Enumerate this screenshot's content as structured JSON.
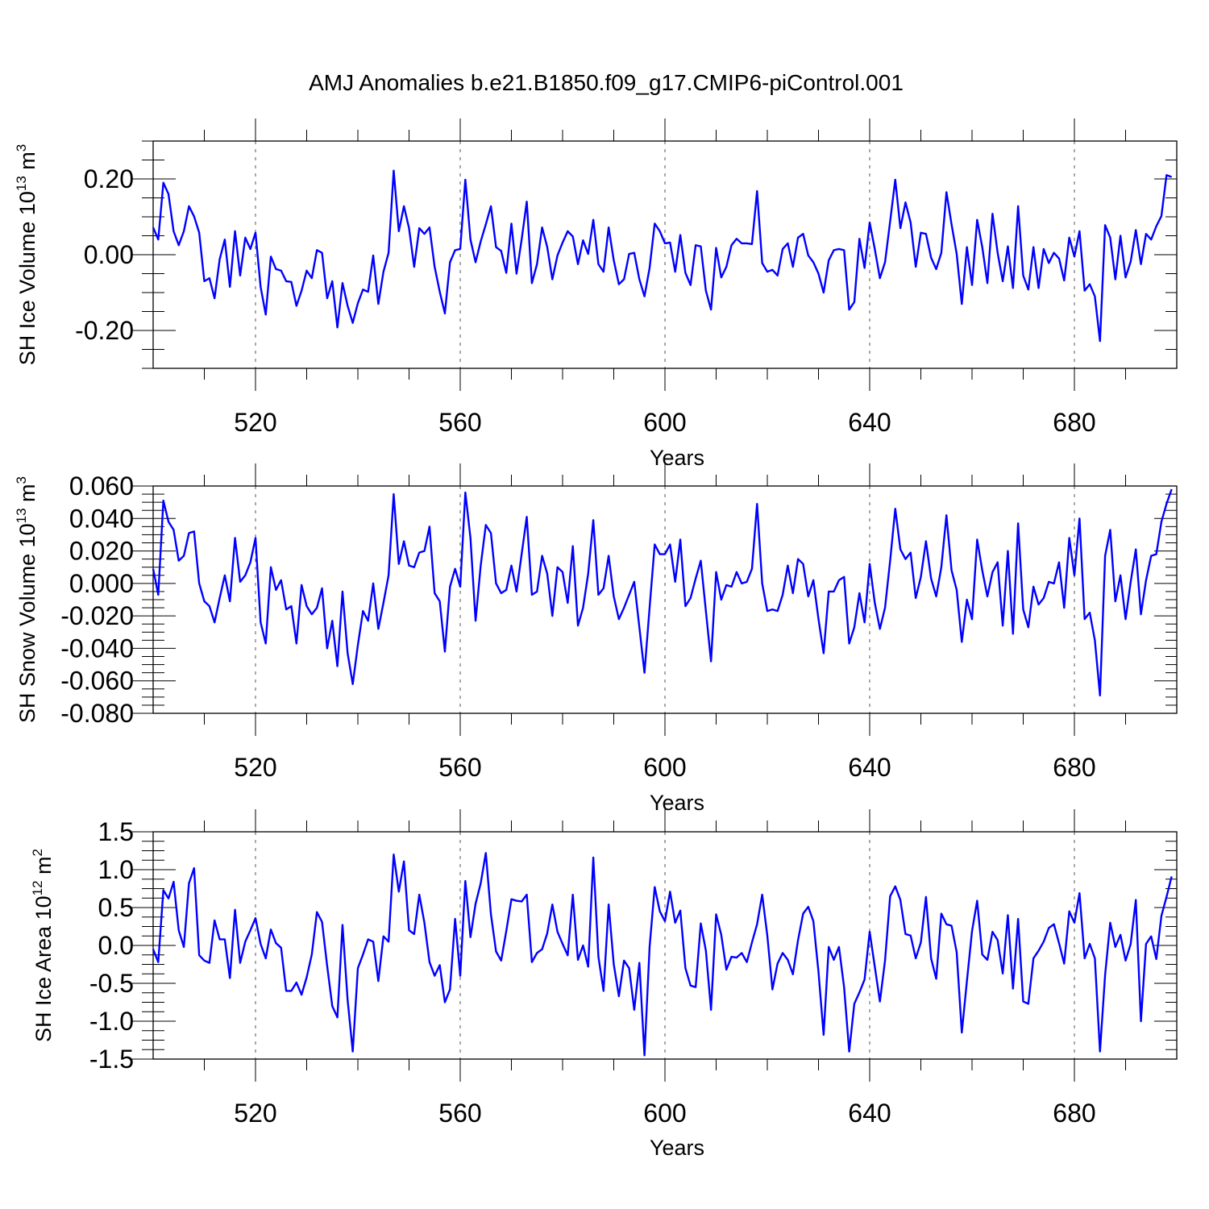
{
  "figure": {
    "title": "AMJ Anomalies b.e21.B1850.f09_g17.CMIP6-piControl.001"
  },
  "chart_data": [
    {
      "type": "line",
      "title": "",
      "xlabel": "Years",
      "ylabel": "SH Ice Volume 10",
      "ylabel_exp": "13",
      "ylabel_unit": " m",
      "ylabel_unit_exp": "3",
      "xlim": [
        500,
        700
      ],
      "ylim": [
        -0.3,
        0.3
      ],
      "xticks": [
        520,
        560,
        600,
        640,
        680
      ],
      "xtick_labels": [
        "520",
        "560",
        "600",
        "640",
        "680"
      ],
      "yticks": [
        -0.2,
        0.0,
        0.2
      ],
      "ytick_labels": [
        "-0.20",
        "0.00",
        "0.20"
      ],
      "grid": "vertical dashed at major x ticks",
      "color": "#0000ff",
      "x_start": 500,
      "values": [
        0.072,
        0.04,
        0.19,
        0.16,
        0.062,
        0.025,
        0.062,
        0.128,
        0.101,
        0.058,
        -0.07,
        -0.062,
        -0.115,
        -0.012,
        0.04,
        -0.085,
        0.062,
        -0.055,
        0.045,
        0.015,
        0.058,
        -0.085,
        -0.158,
        -0.005,
        -0.038,
        -0.042,
        -0.07,
        -0.072,
        -0.135,
        -0.095,
        -0.042,
        -0.062,
        0.012,
        0.005,
        -0.115,
        -0.07,
        -0.192,
        -0.075,
        -0.135,
        -0.18,
        -0.128,
        -0.092,
        -0.098,
        -0.002,
        -0.13,
        -0.045,
        0.005,
        0.222,
        0.062,
        0.128,
        0.07,
        -0.032,
        0.07,
        0.055,
        0.072,
        -0.032,
        -0.098,
        -0.155,
        -0.02,
        0.012,
        0.015,
        0.198,
        0.04,
        -0.02,
        0.035,
        0.08,
        0.128,
        0.02,
        0.01,
        -0.048,
        0.082,
        -0.05,
        0.04,
        0.14,
        -0.075,
        -0.025,
        0.072,
        0.02,
        -0.065,
        -0.002,
        0.032,
        0.062,
        0.048,
        -0.025,
        0.038,
        0.002,
        0.092,
        -0.025,
        -0.045,
        0.072,
        -0.015,
        -0.078,
        -0.065,
        0.002,
        0.005,
        -0.065,
        -0.11,
        -0.035,
        0.082,
        0.062,
        0.03,
        0.032,
        -0.045,
        0.052,
        -0.048,
        -0.08,
        0.025,
        0.022,
        -0.095,
        -0.145,
        0.018,
        -0.06,
        -0.032,
        0.025,
        0.042,
        0.03,
        0.03,
        0.028,
        0.168,
        -0.022,
        -0.045,
        -0.04,
        -0.055,
        0.015,
        0.03,
        -0.032,
        0.045,
        0.055,
        -0.002,
        -0.02,
        -0.05,
        -0.1,
        -0.015,
        0.012,
        0.015,
        0.012,
        -0.145,
        -0.125,
        0.042,
        -0.035,
        0.085,
        0.015,
        -0.062,
        -0.02,
        0.088,
        0.198,
        0.07,
        0.138,
        0.085,
        -0.032,
        0.058,
        0.055,
        -0.008,
        -0.038,
        0.005,
        0.165,
        0.08,
        0.002,
        -0.13,
        0.02,
        -0.08,
        0.092,
        0.02,
        -0.075,
        0.108,
        0.005,
        -0.07,
        0.022,
        -0.088,
        0.128,
        -0.055,
        -0.092,
        0.02,
        -0.088,
        0.015,
        -0.022,
        0.005,
        -0.01,
        -0.068,
        0.045,
        -0.005,
        0.062,
        -0.095,
        -0.078,
        -0.11,
        -0.228,
        0.078,
        0.045,
        -0.065,
        0.05,
        -0.06,
        -0.018,
        0.065,
        -0.025,
        0.055,
        0.04,
        0.075,
        0.102,
        0.21,
        0.205
      ]
    },
    {
      "type": "line",
      "title": "",
      "xlabel": "Years",
      "ylabel": "SH Snow Volume 10",
      "ylabel_exp": "13",
      "ylabel_unit": " m",
      "ylabel_unit_exp": "3",
      "xlim": [
        500,
        700
      ],
      "ylim": [
        -0.08,
        0.06
      ],
      "xticks": [
        520,
        560,
        600,
        640,
        680
      ],
      "xtick_labels": [
        "520",
        "560",
        "600",
        "640",
        "680"
      ],
      "yticks": [
        -0.08,
        -0.06,
        -0.04,
        -0.02,
        0.0,
        0.02,
        0.04,
        0.06
      ],
      "ytick_labels": [
        "-0.080",
        "-0.060",
        "-0.040",
        "-0.020",
        "0.000",
        "0.020",
        "0.040",
        "0.060"
      ],
      "grid": "vertical dashed at major x ticks",
      "color": "#0000ff",
      "x_start": 500,
      "values": [
        0.009,
        -0.007,
        0.051,
        0.038,
        0.033,
        0.014,
        0.017,
        0.031,
        0.032,
        0.0,
        -0.011,
        -0.014,
        -0.024,
        -0.009,
        0.005,
        -0.011,
        0.028,
        0.001,
        0.005,
        0.013,
        0.028,
        -0.024,
        -0.037,
        0.01,
        -0.004,
        0.002,
        -0.016,
        -0.014,
        -0.037,
        -0.001,
        -0.014,
        -0.019,
        -0.015,
        -0.003,
        -0.04,
        -0.023,
        -0.051,
        -0.005,
        -0.043,
        -0.062,
        -0.038,
        -0.017,
        -0.023,
        0.0,
        -0.028,
        -0.012,
        0.005,
        0.055,
        0.012,
        0.026,
        0.011,
        0.01,
        0.019,
        0.02,
        0.035,
        -0.006,
        -0.011,
        -0.042,
        -0.002,
        0.009,
        -0.002,
        0.056,
        0.028,
        -0.023,
        0.011,
        0.036,
        0.031,
        0.0,
        -0.006,
        -0.004,
        0.011,
        -0.005,
        0.018,
        0.041,
        -0.007,
        -0.005,
        0.017,
        0.006,
        -0.02,
        0.01,
        0.007,
        -0.012,
        0.023,
        -0.026,
        -0.015,
        0.006,
        0.039,
        -0.007,
        -0.003,
        0.017,
        -0.008,
        -0.022,
        -0.015,
        -0.007,
        0.001,
        -0.027,
        -0.055,
        -0.015,
        0.024,
        0.018,
        0.018,
        0.024,
        0.001,
        0.027,
        -0.014,
        -0.009,
        0.003,
        0.014,
        -0.017,
        -0.048,
        0.007,
        -0.01,
        -0.001,
        -0.002,
        0.007,
        0.0,
        0.001,
        0.009,
        0.049,
        0.0,
        -0.017,
        -0.016,
        -0.017,
        -0.007,
        0.011,
        -0.006,
        0.015,
        0.012,
        -0.008,
        0.002,
        -0.022,
        -0.043,
        -0.005,
        -0.005,
        0.002,
        0.004,
        -0.037,
        -0.027,
        -0.006,
        -0.024,
        0.012,
        -0.012,
        -0.028,
        -0.015,
        0.014,
        0.046,
        0.021,
        0.015,
        0.019,
        -0.009,
        0.004,
        0.026,
        0.003,
        -0.008,
        0.01,
        0.042,
        0.008,
        -0.004,
        -0.036,
        -0.01,
        -0.022,
        0.027,
        0.008,
        -0.008,
        0.007,
        0.013,
        -0.026,
        0.02,
        -0.031,
        0.037,
        -0.016,
        -0.027,
        -0.002,
        -0.013,
        -0.009,
        0.001,
        0.0,
        0.013,
        -0.015,
        0.028,
        0.005,
        0.04,
        -0.022,
        -0.018,
        -0.035,
        -0.069,
        0.017,
        0.033,
        -0.011,
        0.005,
        -0.022,
        0.001,
        0.021,
        -0.019,
        0.002,
        0.017,
        0.018,
        0.038,
        0.049,
        0.058
      ]
    },
    {
      "type": "line",
      "title": "",
      "xlabel": "Years",
      "ylabel": "SH Ice Area 10",
      "ylabel_exp": "12",
      "ylabel_unit": " m",
      "ylabel_unit_exp": "2",
      "xlim": [
        500,
        700
      ],
      "ylim": [
        -1.5,
        1.5
      ],
      "xticks": [
        520,
        560,
        600,
        640,
        680
      ],
      "xtick_labels": [
        "520",
        "560",
        "600",
        "640",
        "680"
      ],
      "yticks": [
        -1.5,
        -1.0,
        -0.5,
        0.0,
        0.5,
        1.0,
        1.5
      ],
      "ytick_labels": [
        "-1.5",
        "-1.0",
        "-0.5",
        "0.0",
        "0.5",
        "1.0",
        "1.5"
      ],
      "grid": "vertical dashed at major x ticks",
      "color": "#0000ff",
      "x_start": 500,
      "values": [
        -0.05,
        -0.22,
        0.73,
        0.62,
        0.84,
        0.2,
        -0.02,
        0.82,
        1.02,
        -0.13,
        -0.2,
        -0.23,
        0.33,
        0.08,
        0.08,
        -0.43,
        0.47,
        -0.23,
        0.05,
        0.2,
        0.36,
        0.02,
        -0.17,
        0.21,
        0.03,
        -0.03,
        -0.6,
        -0.6,
        -0.49,
        -0.65,
        -0.42,
        -0.12,
        0.44,
        0.31,
        -0.27,
        -0.8,
        -0.95,
        0.27,
        -0.72,
        -1.4,
        -0.3,
        -0.12,
        0.08,
        0.05,
        -0.47,
        0.12,
        0.05,
        1.2,
        0.71,
        1.11,
        0.2,
        0.15,
        0.67,
        0.3,
        -0.22,
        -0.4,
        -0.26,
        -0.75,
        -0.58,
        0.35,
        -0.4,
        0.85,
        0.11,
        0.55,
        0.82,
        1.22,
        0.41,
        -0.08,
        -0.2,
        0.19,
        0.61,
        0.59,
        0.58,
        0.67,
        -0.22,
        -0.1,
        -0.05,
        0.16,
        0.54,
        0.18,
        0.02,
        -0.13,
        0.67,
        -0.19,
        0.0,
        -0.28,
        1.16,
        -0.15,
        -0.6,
        0.54,
        -0.25,
        -0.67,
        -0.2,
        -0.3,
        -0.85,
        -0.23,
        -1.45,
        -0.02,
        0.77,
        0.45,
        0.32,
        0.71,
        0.3,
        0.46,
        -0.3,
        -0.53,
        -0.55,
        0.29,
        -0.07,
        -0.85,
        0.41,
        0.14,
        -0.32,
        -0.15,
        -0.16,
        -0.1,
        -0.22,
        0.04,
        0.28,
        0.67,
        0.13,
        -0.58,
        -0.24,
        -0.1,
        -0.19,
        -0.38,
        0.07,
        0.42,
        0.51,
        0.32,
        -0.35,
        -1.18,
        -0.02,
        -0.19,
        -0.02,
        -0.55,
        -1.4,
        -0.77,
        -0.62,
        -0.45,
        0.18,
        -0.28,
        -0.74,
        -0.2,
        0.65,
        0.78,
        0.6,
        0.15,
        0.13,
        -0.17,
        0.04,
        0.64,
        -0.17,
        -0.44,
        0.42,
        0.28,
        0.26,
        -0.09,
        -1.15,
        -0.47,
        0.19,
        0.59,
        -0.12,
        -0.19,
        0.18,
        0.07,
        -0.37,
        0.4,
        -0.57,
        0.35,
        -0.74,
        -0.77,
        -0.17,
        -0.07,
        0.05,
        0.23,
        0.28,
        0.03,
        -0.24,
        0.45,
        0.3,
        0.69,
        -0.17,
        0.02,
        -0.17,
        -1.4,
        -0.39,
        0.3,
        -0.02,
        0.14,
        -0.2,
        0.02,
        0.6,
        -1.0,
        0.02,
        0.12,
        -0.18,
        0.39,
        0.64,
        0.91
      ]
    }
  ]
}
